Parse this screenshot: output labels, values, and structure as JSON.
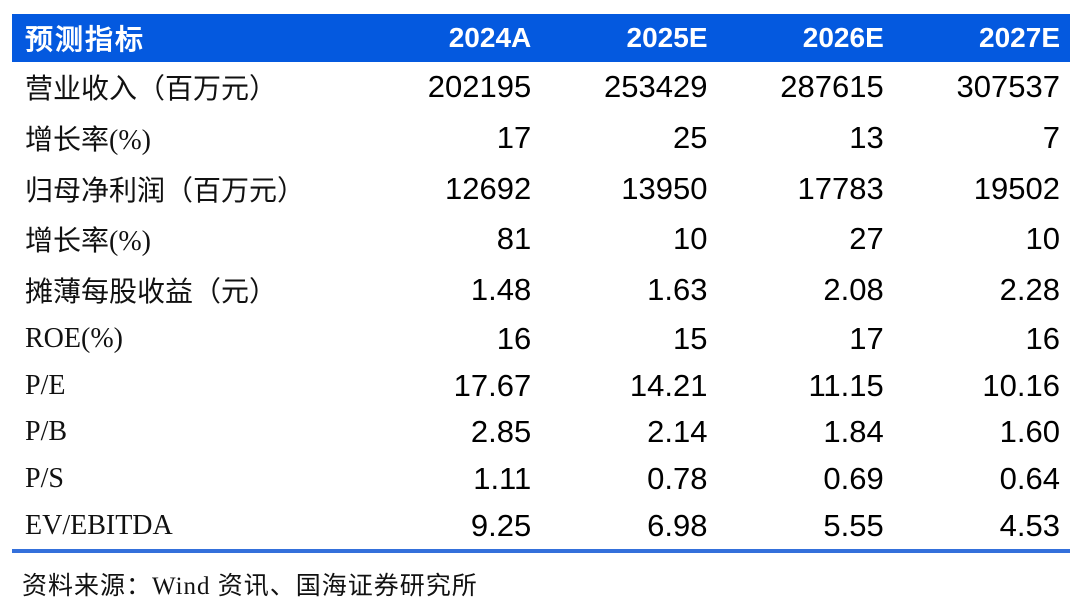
{
  "chart_data": {
    "type": "table",
    "corner_label": "预测指标",
    "columns": [
      "2024A",
      "2025E",
      "2026E",
      "2027E"
    ],
    "rows": [
      {
        "label": "营业收入（百万元）",
        "values": [
          "202195",
          "253429",
          "287615",
          "307537"
        ]
      },
      {
        "label": "增长率(%)",
        "values": [
          "17",
          "25",
          "13",
          "7"
        ]
      },
      {
        "label": "归母净利润（百万元）",
        "values": [
          "12692",
          "13950",
          "17783",
          "19502"
        ]
      },
      {
        "label": "增长率(%)",
        "values": [
          "81",
          "10",
          "27",
          "10"
        ]
      },
      {
        "label": "摊薄每股收益（元）",
        "values": [
          "1.48",
          "1.63",
          "2.08",
          "2.28"
        ]
      },
      {
        "label": "ROE(%)",
        "values": [
          "16",
          "15",
          "17",
          "16"
        ]
      },
      {
        "label": "P/E",
        "values": [
          "17.67",
          "14.21",
          "11.15",
          "10.16"
        ]
      },
      {
        "label": "P/B",
        "values": [
          "2.85",
          "2.14",
          "1.84",
          "1.60"
        ]
      },
      {
        "label": "P/S",
        "values": [
          "1.11",
          "0.78",
          "0.69",
          "0.64"
        ]
      },
      {
        "label": "EV/EBITDA",
        "values": [
          "9.25",
          "6.98",
          "5.55",
          "4.53"
        ]
      }
    ],
    "source_note": "资料来源：Wind 资讯、国海证券研究所",
    "layout": {
      "grid": "off",
      "header_alignment": "numbers right-aligned, labels left-aligned"
    }
  },
  "colors": {
    "header_background": "#0459DF",
    "header_text": "#FFFFFF",
    "body_text": "#000000",
    "separator_line": "#3470DB"
  }
}
